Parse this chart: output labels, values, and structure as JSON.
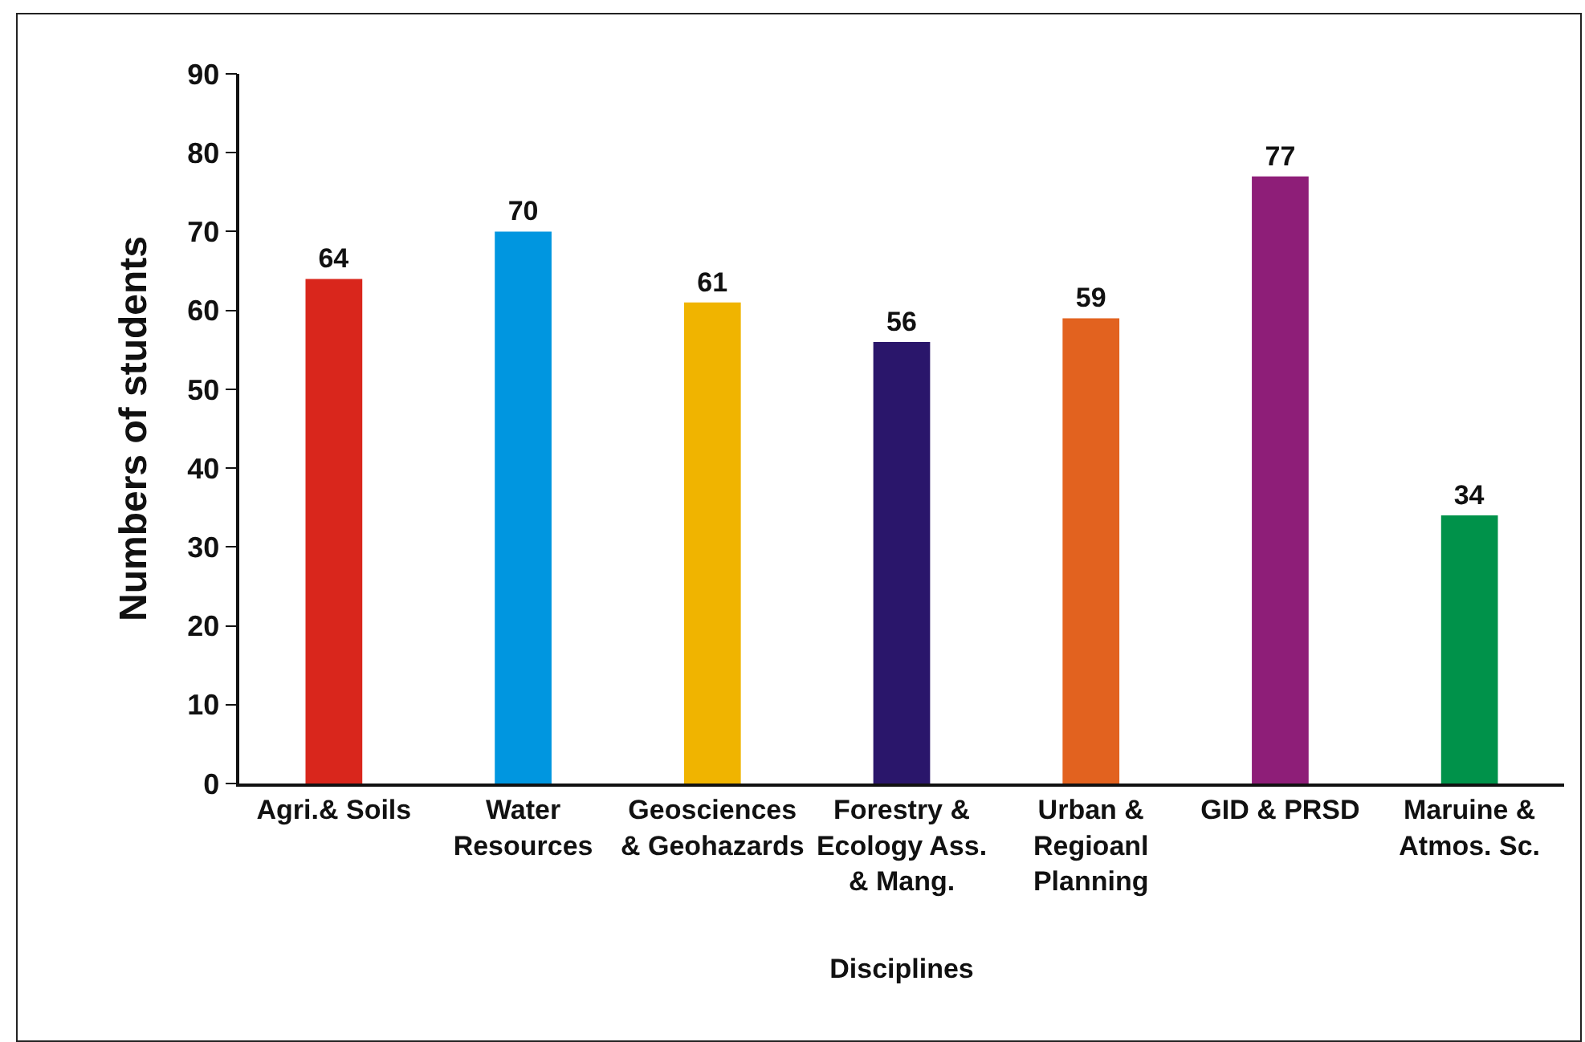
{
  "chart_data": {
    "type": "bar",
    "xlabel": "Disciplines",
    "ylabel": "Numbers of students",
    "categories": [
      "Agri.& Soils",
      "Water Resources",
      "Geosciences & Geohazards",
      "Forestry & Ecology Ass. & Mang.",
      "Urban & Regioanl Planning",
      "GID & PRSD",
      "Maruine & Atmos. Sc."
    ],
    "values": [
      64,
      70,
      61,
      56,
      59,
      77,
      34
    ],
    "colors": [
      "#d9261c",
      "#0096e0",
      "#f0b400",
      "#2a166b",
      "#e2621f",
      "#8e1e78",
      "#00924a"
    ],
    "ylim": [
      0,
      90
    ],
    "yticks": [
      0,
      10,
      20,
      30,
      40,
      50,
      60,
      70,
      80,
      90
    ],
    "data_labels": true,
    "grid": false
  }
}
